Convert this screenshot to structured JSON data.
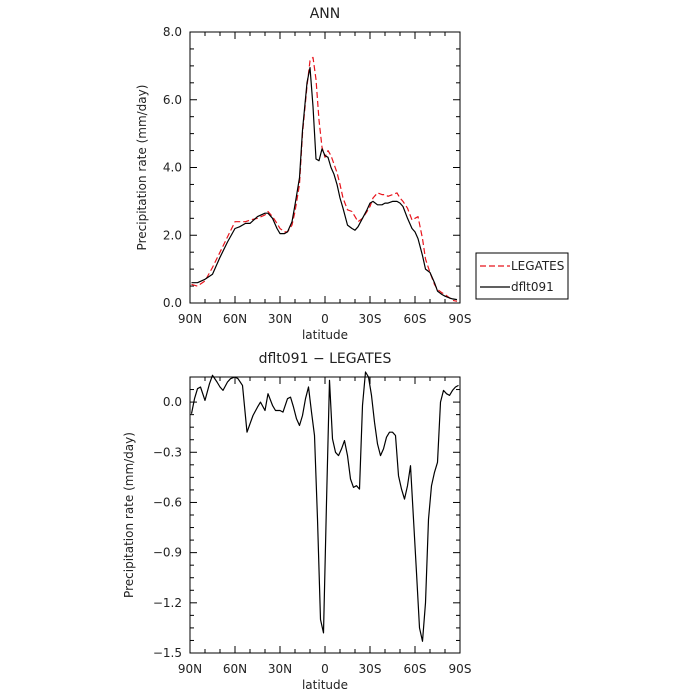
{
  "chart_data": [
    {
      "type": "line",
      "title": "ANN",
      "xlabel": "latitude",
      "ylabel": "Precipitation rate (mm/day)",
      "xlim": [
        90,
        -90
      ],
      "ylim": [
        0,
        8
      ],
      "xticks": [
        {
          "v": 90,
          "label": "90N"
        },
        {
          "v": 60,
          "label": "60N"
        },
        {
          "v": 30,
          "label": "30N"
        },
        {
          "v": 0,
          "label": "0"
        },
        {
          "v": -30,
          "label": "30S"
        },
        {
          "v": -60,
          "label": "60S"
        },
        {
          "v": -90,
          "label": "90S"
        }
      ],
      "yticks": [
        {
          "v": 0,
          "label": "0.0"
        },
        {
          "v": 2,
          "label": "2.0"
        },
        {
          "v": 4,
          "label": "4.0"
        },
        {
          "v": 6,
          "label": "6.0"
        },
        {
          "v": 8,
          "label": "8.0"
        }
      ],
      "legend": "right",
      "series": [
        {
          "name": "LEGATES",
          "color": "#e8141c",
          "dash": true,
          "x": [
            89,
            85,
            80,
            75,
            70,
            65,
            60,
            57,
            53,
            50,
            45,
            40,
            38,
            35,
            32,
            30,
            27,
            25,
            22,
            20,
            17,
            15,
            12,
            10,
            8,
            6,
            4,
            2,
            0,
            -2,
            -4,
            -6,
            -8,
            -10,
            -12,
            -15,
            -18,
            -20,
            -22,
            -25,
            -28,
            -30,
            -32,
            -35,
            -38,
            -40,
            -42,
            -45,
            -48,
            -50,
            -52,
            -55,
            -58,
            -60,
            -62,
            -65,
            -67,
            -70,
            -73,
            -75,
            -78,
            -80,
            -83,
            -85,
            -88
          ],
          "y": [
            0.55,
            0.5,
            0.65,
            1.05,
            1.5,
            1.95,
            2.4,
            2.4,
            2.4,
            2.45,
            2.5,
            2.6,
            2.7,
            2.55,
            2.35,
            2.2,
            2.1,
            2.1,
            2.3,
            2.7,
            3.5,
            5.0,
            6.4,
            7.15,
            7.25,
            6.6,
            5.4,
            4.6,
            4.3,
            4.5,
            4.35,
            4.1,
            3.85,
            3.5,
            3.1,
            2.75,
            2.7,
            2.55,
            2.4,
            2.5,
            2.7,
            2.85,
            3.1,
            3.25,
            3.2,
            3.2,
            3.15,
            3.2,
            3.25,
            3.1,
            3.0,
            2.8,
            2.45,
            2.5,
            2.55,
            1.9,
            1.3,
            0.9,
            0.55,
            0.4,
            0.3,
            0.25,
            0.15,
            0.08,
            0.05
          ]
        },
        {
          "name": "dflt091",
          "color": "#000000",
          "dash": false,
          "x": [
            89,
            85,
            80,
            75,
            70,
            65,
            60,
            57,
            53,
            50,
            45,
            40,
            38,
            35,
            32,
            30,
            27,
            25,
            22,
            20,
            17,
            15,
            12,
            10,
            8,
            6,
            4,
            2,
            0,
            -2,
            -4,
            -6,
            -8,
            -10,
            -12,
            -15,
            -18,
            -20,
            -22,
            -25,
            -28,
            -30,
            -32,
            -35,
            -38,
            -40,
            -42,
            -45,
            -48,
            -50,
            -52,
            -55,
            -58,
            -60,
            -62,
            -65,
            -67,
            -70,
            -73,
            -75,
            -78,
            -80,
            -83,
            -85,
            -88
          ],
          "y": [
            0.6,
            0.6,
            0.7,
            0.85,
            1.35,
            1.8,
            2.2,
            2.25,
            2.35,
            2.35,
            2.55,
            2.65,
            2.65,
            2.5,
            2.2,
            2.05,
            2.05,
            2.1,
            2.4,
            2.9,
            3.7,
            5.1,
            6.5,
            6.95,
            5.8,
            4.25,
            4.2,
            4.55,
            4.35,
            4.3,
            4.0,
            3.8,
            3.5,
            3.1,
            2.8,
            2.3,
            2.2,
            2.15,
            2.25,
            2.5,
            2.75,
            2.95,
            3.0,
            2.9,
            2.9,
            2.95,
            2.95,
            3.0,
            3.0,
            2.95,
            2.85,
            2.5,
            2.2,
            2.1,
            1.9,
            1.4,
            1.0,
            0.9,
            0.6,
            0.35,
            0.25,
            0.2,
            0.15,
            0.12,
            0.1
          ]
        }
      ]
    },
    {
      "type": "line",
      "title": "dflt091 − LEGATES",
      "xlabel": "latitude",
      "ylabel": "Precipitation rate (mm/day)",
      "xlim": [
        90,
        -90
      ],
      "ylim": [
        -1.5,
        0.15
      ],
      "xticks": [
        {
          "v": 90,
          "label": "90N"
        },
        {
          "v": 60,
          "label": "60N"
        },
        {
          "v": 30,
          "label": "30N"
        },
        {
          "v": 0,
          "label": "0"
        },
        {
          "v": -30,
          "label": "30S"
        },
        {
          "v": -60,
          "label": "60S"
        },
        {
          "v": -90,
          "label": "90S"
        }
      ],
      "yticks": [
        {
          "v": 0.0,
          "label": "0.0"
        },
        {
          "v": -0.3,
          "label": "−0.3"
        },
        {
          "v": -0.6,
          "label": "−0.6"
        },
        {
          "v": -0.9,
          "label": "−0.9"
        },
        {
          "v": -1.2,
          "label": "−1.2"
        },
        {
          "v": -1.5,
          "label": "−1.5"
        }
      ],
      "series": [
        {
          "color": "#000000",
          "dash": false,
          "x": [
            89,
            87,
            85,
            83,
            80,
            77,
            75,
            72,
            70,
            68,
            65,
            63,
            60,
            58,
            55,
            52,
            50,
            48,
            45,
            43,
            40,
            38,
            35,
            33,
            30,
            28,
            25,
            23,
            21,
            19,
            17,
            15,
            13,
            11,
            9,
            7,
            5,
            3,
            1,
            -1,
            -3,
            -5,
            -7,
            -9,
            -11,
            -13,
            -15,
            -17,
            -19,
            -21,
            -23,
            -25,
            -27,
            -29,
            -31,
            -33,
            -35,
            -37,
            -39,
            -41,
            -43,
            -45,
            -47,
            -49,
            -51,
            -53,
            -55,
            -57,
            -59,
            -61,
            -63,
            -65,
            -67,
            -69,
            -71,
            -73,
            -75,
            -77,
            -79,
            -81,
            -83,
            -85,
            -87,
            -89
          ],
          "y": [
            -0.07,
            0.02,
            0.08,
            0.09,
            0.01,
            0.11,
            0.16,
            0.12,
            0.09,
            0.07,
            0.12,
            0.14,
            0.15,
            0.14,
            0.1,
            -0.18,
            -0.13,
            -0.08,
            -0.03,
            -0.0,
            -0.05,
            0.05,
            -0.02,
            -0.05,
            -0.05,
            -0.06,
            0.02,
            0.03,
            -0.03,
            -0.1,
            -0.14,
            -0.08,
            0.02,
            0.09,
            -0.06,
            -0.2,
            -0.7,
            -1.3,
            -1.38,
            -0.6,
            0.13,
            -0.22,
            -0.3,
            -0.32,
            -0.28,
            -0.23,
            -0.32,
            -0.46,
            -0.51,
            -0.5,
            -0.52,
            -0.02,
            0.18,
            0.15,
            0.04,
            -0.12,
            -0.25,
            -0.32,
            -0.28,
            -0.21,
            -0.18,
            -0.18,
            -0.2,
            -0.44,
            -0.52,
            -0.58,
            -0.5,
            -0.38,
            -0.7,
            -1.02,
            -1.35,
            -1.43,
            -1.2,
            -0.7,
            -0.5,
            -0.42,
            -0.36,
            0.0,
            0.07,
            0.05,
            0.04,
            0.07,
            0.09,
            0.1
          ]
        }
      ]
    }
  ]
}
